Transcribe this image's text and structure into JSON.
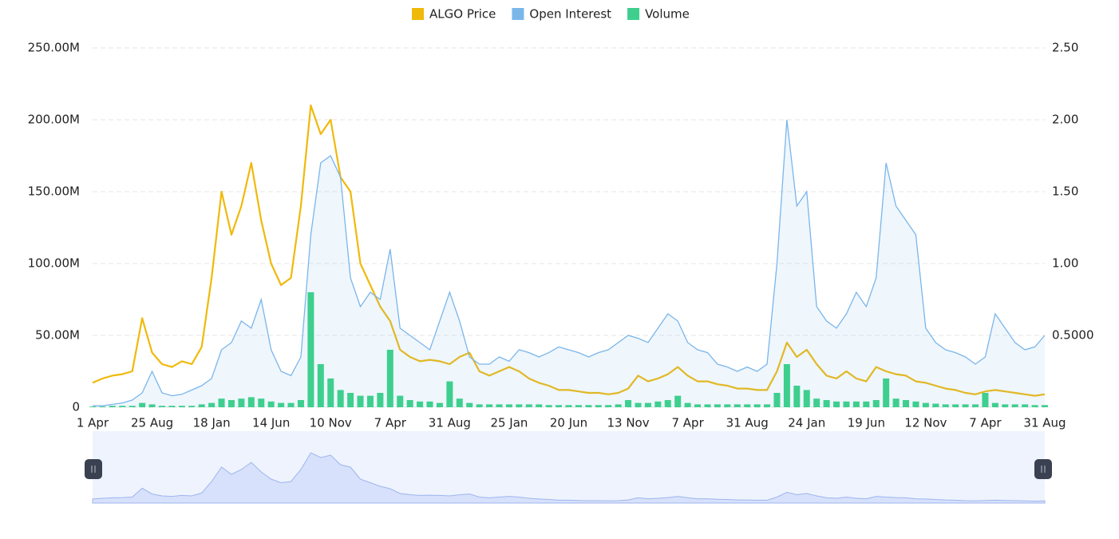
{
  "chart_data": {
    "type": "line",
    "categories": [
      "1 Apr",
      null,
      null,
      null,
      null,
      null,
      "25 Aug",
      null,
      null,
      null,
      null,
      null,
      "18 Jan",
      null,
      null,
      null,
      null,
      null,
      "14 Jun",
      null,
      null,
      null,
      null,
      null,
      "10 Nov",
      null,
      null,
      null,
      null,
      null,
      "7 Apr",
      null,
      null,
      null,
      null,
      null,
      "31 Aug",
      null,
      null,
      null,
      null,
      null,
      "25 Jan",
      null,
      null,
      null,
      null,
      null,
      "20 Jun",
      null,
      null,
      null,
      null,
      null,
      "13 Nov",
      null,
      null,
      null,
      null,
      null,
      "7 Apr",
      null,
      null,
      null,
      null,
      null,
      "31 Aug",
      null,
      null,
      null,
      null,
      null,
      "24 Jan",
      null,
      null,
      null,
      null,
      null,
      "19 Jun",
      null,
      null,
      null,
      null,
      null,
      "12 Nov",
      null,
      null,
      null,
      null,
      null,
      "7 Apr",
      null,
      null,
      null,
      null,
      null,
      "31 Aug"
    ],
    "series": [
      {
        "name": "ALGO Price",
        "color": "#f0b90b",
        "axis": "y2",
        "kind": "line",
        "values": [
          0.17,
          0.2,
          0.22,
          0.23,
          0.25,
          0.62,
          0.38,
          0.3,
          0.28,
          0.32,
          0.3,
          0.42,
          0.9,
          1.5,
          1.2,
          1.4,
          1.7,
          1.3,
          1.0,
          0.85,
          0.9,
          1.4,
          2.1,
          1.9,
          2.0,
          1.6,
          1.5,
          1.0,
          0.85,
          0.7,
          0.6,
          0.4,
          0.35,
          0.32,
          0.33,
          0.32,
          0.3,
          0.35,
          0.38,
          0.25,
          0.22,
          0.25,
          0.28,
          0.25,
          0.2,
          0.17,
          0.15,
          0.12,
          0.12,
          0.11,
          0.1,
          0.1,
          0.09,
          0.1,
          0.13,
          0.22,
          0.18,
          0.2,
          0.23,
          0.28,
          0.22,
          0.18,
          0.18,
          0.16,
          0.15,
          0.13,
          0.13,
          0.12,
          0.12,
          0.25,
          0.45,
          0.35,
          0.4,
          0.3,
          0.22,
          0.2,
          0.25,
          0.2,
          0.18,
          0.28,
          0.25,
          0.23,
          0.22,
          0.18,
          0.17,
          0.15,
          0.13,
          0.12,
          0.1,
          0.09,
          0.11,
          0.12,
          0.11,
          0.1,
          0.09,
          0.08,
          0.09
        ]
      },
      {
        "name": "Open Interest",
        "color": "#7ab6ea",
        "kind": "area",
        "values": [
          1000000,
          1000000,
          2000000,
          3000000,
          5000000,
          10000000,
          25000000,
          10000000,
          8000000,
          9000000,
          12000000,
          15000000,
          20000000,
          40000000,
          45000000,
          60000000,
          55000000,
          75000000,
          40000000,
          25000000,
          22000000,
          35000000,
          120000000,
          170000000,
          175000000,
          160000000,
          90000000,
          70000000,
          80000000,
          75000000,
          110000000,
          55000000,
          50000000,
          45000000,
          40000000,
          60000000,
          80000000,
          60000000,
          35000000,
          30000000,
          30000000,
          35000000,
          32000000,
          40000000,
          38000000,
          35000000,
          38000000,
          42000000,
          40000000,
          38000000,
          35000000,
          38000000,
          40000000,
          45000000,
          50000000,
          48000000,
          45000000,
          55000000,
          65000000,
          60000000,
          45000000,
          40000000,
          38000000,
          30000000,
          28000000,
          25000000,
          28000000,
          25000000,
          30000000,
          100000000,
          200000000,
          140000000,
          150000000,
          70000000,
          60000000,
          55000000,
          65000000,
          80000000,
          70000000,
          90000000,
          170000000,
          140000000,
          130000000,
          120000000,
          55000000,
          45000000,
          40000000,
          38000000,
          35000000,
          30000000,
          35000000,
          65000000,
          55000000,
          45000000,
          40000000,
          42000000,
          50000000
        ]
      },
      {
        "name": "Volume",
        "color": "#3ecf8e",
        "kind": "bar",
        "values": [
          500000,
          500000,
          1000000,
          1000000,
          1000000,
          3000000,
          2000000,
          1000000,
          1000000,
          1000000,
          1000000,
          2000000,
          3000000,
          6000000,
          5000000,
          6000000,
          7000000,
          6000000,
          4000000,
          3000000,
          3000000,
          5000000,
          80000000,
          30000000,
          20000000,
          12000000,
          10000000,
          8000000,
          8000000,
          10000000,
          40000000,
          8000000,
          5000000,
          4000000,
          4000000,
          3000000,
          18000000,
          6000000,
          3000000,
          2000000,
          2000000,
          2000000,
          2000000,
          2000000,
          2000000,
          2000000,
          1500000,
          1500000,
          1500000,
          1500000,
          1500000,
          1500000,
          1500000,
          2000000,
          5000000,
          3000000,
          3000000,
          4000000,
          5000000,
          8000000,
          3000000,
          2000000,
          2000000,
          2000000,
          2000000,
          2000000,
          2000000,
          2000000,
          2000000,
          10000000,
          30000000,
          15000000,
          12000000,
          6000000,
          5000000,
          4000000,
          4000000,
          4000000,
          4000000,
          5000000,
          20000000,
          6000000,
          5000000,
          4000000,
          3000000,
          2500000,
          2000000,
          2000000,
          2000000,
          2000000,
          10000000,
          3000000,
          2000000,
          2000000,
          2000000,
          1500000,
          1500000
        ]
      }
    ],
    "ylim": [
      0,
      250000000
    ],
    "yticks": [
      0,
      {
        "value": 50000000,
        "label": "50.00M"
      },
      {
        "value": 100000000,
        "label": "100.00M"
      },
      {
        "value": 150000000,
        "label": "150.00M"
      },
      {
        "value": 200000000,
        "label": "200.00M"
      },
      {
        "value": 250000000,
        "label": "250.00M"
      }
    ],
    "y2lim": [
      0,
      2.5
    ],
    "y2ticks": [
      {
        "value": 0.5,
        "label": "0.5000"
      },
      {
        "value": 1,
        "label": "1.00"
      },
      {
        "value": 1.5,
        "label": "1.50"
      },
      {
        "value": 2,
        "label": "2.00"
      },
      {
        "value": 2.5,
        "label": "2.50"
      }
    ],
    "grid": true,
    "legend": "top"
  }
}
